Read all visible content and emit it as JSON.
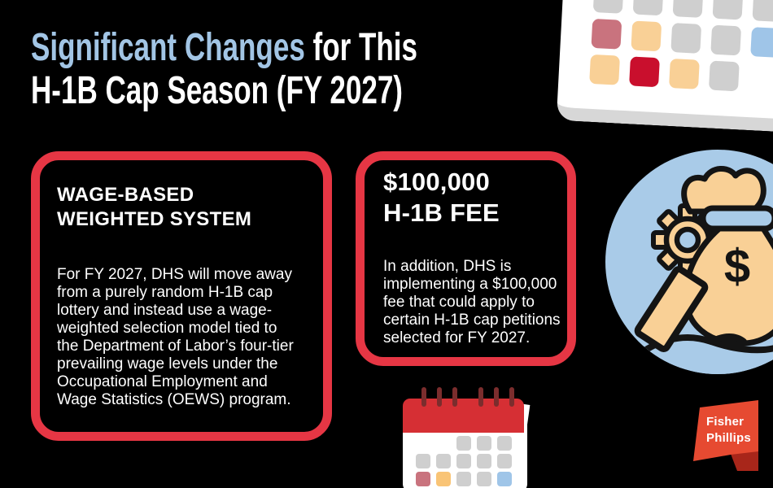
{
  "title": {
    "highlight": "Significant Changes",
    "rest": " for This\nH-1B Cap Season (FY 2027)"
  },
  "cards": [
    {
      "heading": "WAGE-BASED\nWEIGHTED SYSTEM",
      "body": "For FY 2027, DHS will move away\nfrom a purely random H-1B cap\nlottery and instead use a wage-\nweighted selection model tied to\nthe Department of Labor’s four-tier\nprevailing wage levels under the\nOccupational Employment and\nWage Statistics (OEWS) program."
    },
    {
      "heading": "$100,000\nH-1B FEE",
      "body": "In addition, DHS is\nimplementing a $100,000\nfee that could apply to\ncertain H-1B cap petitions\nselected for FY 2027."
    }
  ],
  "money_icon": {
    "symbol": "$"
  },
  "logo": {
    "line1": "Fisher",
    "line2": "Phillips"
  },
  "colors": {
    "bg": "#000000",
    "title_blue": "#a2c5e5",
    "accent_red": "#e63644",
    "circle_blue": "#a9cbe8",
    "peach": "#f9d096",
    "outline": "#141414",
    "cal_red": "#d62f34",
    "ring_maroon": "#7b2d2d",
    "card_edge": "#d7d7d7",
    "gray": "#cfcfcf",
    "rose": "#c9737e",
    "crimson": "#c90f2d",
    "sky": "#9fc5e8",
    "orange": "#f9c476",
    "logo_red": "#e64a31",
    "logo_fold": "#a8261a"
  },
  "decorations": {
    "calendar_top": {
      "rows": [
        [
          "gray",
          "gray",
          "gray",
          "gray",
          "gray"
        ],
        [
          "rose",
          "peach",
          "gray",
          "gray",
          "sky"
        ],
        [
          "peach",
          "crimson",
          "peach",
          "gray",
          null
        ]
      ]
    },
    "calendar_bottom": {
      "rows": [
        [
          null,
          null,
          "gray",
          "gray",
          "gray"
        ],
        [
          "gray",
          "gray",
          "gray",
          "gray",
          "gray"
        ],
        [
          "rose",
          "orange",
          "gray",
          "gray",
          "sky"
        ]
      ]
    }
  }
}
